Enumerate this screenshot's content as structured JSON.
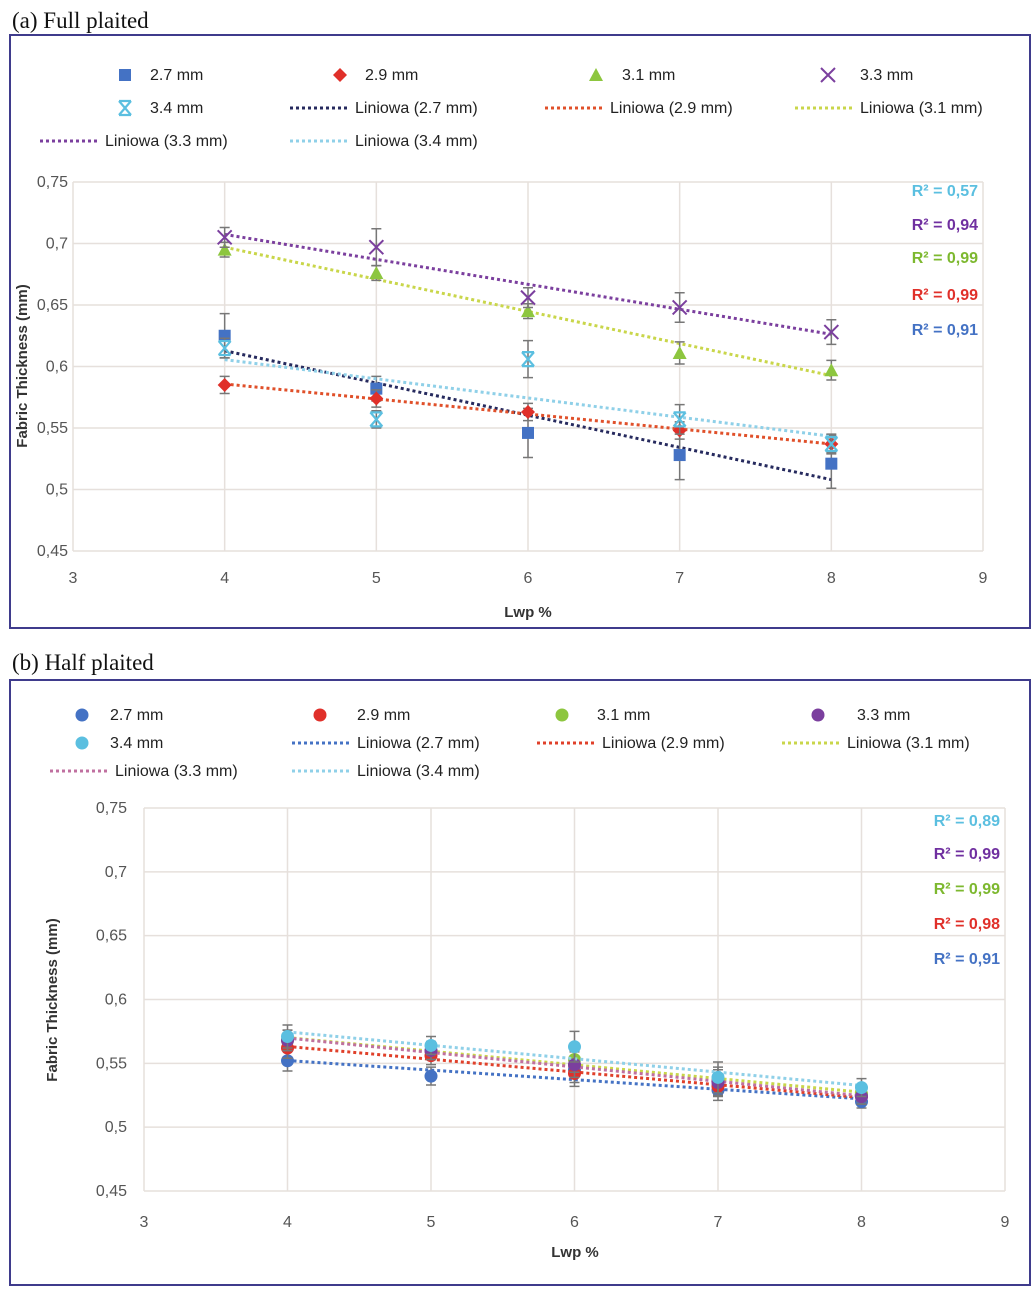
{
  "chart_data": [
    {
      "type": "scatter",
      "title": "(a) Full plaited",
      "xlabel": "Lwp %",
      "ylabel": "Fabric Thickness (mm)",
      "xlim": [
        3,
        9
      ],
      "ylim": [
        0.45,
        0.75
      ],
      "x_ticks": [
        "3",
        "4",
        "5",
        "6",
        "7",
        "8",
        "9"
      ],
      "y_ticks": [
        "0,45",
        "0,5",
        "0,55",
        "0,6",
        "0,65",
        "0,7",
        "0,75"
      ],
      "grid": true,
      "legend_placement": "top",
      "x": [
        4,
        5,
        6,
        7,
        8
      ],
      "series": [
        {
          "name": "2.7 mm",
          "marker": "square",
          "color": "#4472C4",
          "trend_color": "#262a5e",
          "values": [
            0.625,
            0.582,
            0.546,
            0.528,
            0.521
          ],
          "errors": [
            0.018,
            0.01,
            0.02,
            0.02,
            0.02
          ],
          "trend_name": "Liniowa (2.7 mm)",
          "r2": "R² = 0,91",
          "r2_color": "#4472C4"
        },
        {
          "name": "2.9 mm",
          "marker": "diamond",
          "color": "#E0302A",
          "trend_color": "#E0502A",
          "values": [
            0.585,
            0.574,
            0.563,
            0.548,
            0.537
          ],
          "errors": [
            0.007,
            0.007,
            0.007,
            0.007,
            0.007
          ],
          "trend_name": "Liniowa (2.9 mm)",
          "r2": "R² = 0,99",
          "r2_color": "#E0302A"
        },
        {
          "name": "3.1 mm",
          "marker": "triangle",
          "color": "#8DC63F",
          "trend_color": "#C9D64A",
          "values": [
            0.695,
            0.676,
            0.645,
            0.611,
            0.597
          ],
          "errors": [
            0.006,
            0.006,
            0.006,
            0.009,
            0.008
          ],
          "trend_name": "Liniowa (3.1 mm)",
          "r2": "R² = 0,99",
          "r2_color": "#7DB82F"
        },
        {
          "name": "3.3 mm",
          "marker": "x",
          "color": "#7B3F9E",
          "trend_color": "#7B3F9E",
          "values": [
            0.705,
            0.697,
            0.656,
            0.648,
            0.628
          ],
          "errors": [
            0.008,
            0.015,
            0.008,
            0.012,
            0.01
          ],
          "trend_name": "Liniowa (3.3 mm)",
          "r2": "R² = 0,94",
          "r2_color": "#7030A0"
        },
        {
          "name": "3.4 mm",
          "marker": "asterisk",
          "color": "#5BBFE0",
          "trend_color": "#8FD0E8",
          "values": [
            0.615,
            0.557,
            0.606,
            0.557,
            0.537
          ],
          "errors": [
            0.008,
            0.007,
            0.015,
            0.012,
            0.008
          ],
          "trend_name": "Liniowa (3.4 mm)",
          "r2": "R² = 0,57",
          "r2_color": "#5BBFE0"
        }
      ]
    },
    {
      "type": "scatter",
      "title": "(b) Half plaited",
      "xlabel": "Lwp %",
      "ylabel": "Fabric Thickness (mm)",
      "xlim": [
        3,
        9
      ],
      "ylim": [
        0.45,
        0.75
      ],
      "x_ticks": [
        "3",
        "4",
        "5",
        "6",
        "7",
        "8",
        "9"
      ],
      "y_ticks": [
        "0,45",
        "0,5",
        "0,55",
        "0,6",
        "0,65",
        "0,7",
        "0,75"
      ],
      "grid": true,
      "legend_placement": "top",
      "x": [
        4,
        5,
        6,
        7,
        8
      ],
      "series": [
        {
          "name": "2.7 mm",
          "marker": "circle",
          "color": "#4472C4",
          "trend_color": "#4472C4",
          "values": [
            0.552,
            0.54,
            0.545,
            0.529,
            0.52
          ],
          "errors": [
            0.008,
            0.007,
            0.01,
            0.008,
            0.005
          ],
          "trend_name": "Liniowa (2.7 mm)",
          "r2": "R² = 0,91",
          "r2_color": "#4472C4"
        },
        {
          "name": "2.9 mm",
          "marker": "circle",
          "color": "#E0302A",
          "trend_color": "#E0402A",
          "values": [
            0.562,
            0.556,
            0.542,
            0.532,
            0.524
          ],
          "errors": [
            0.008,
            0.007,
            0.01,
            0.008,
            0.006
          ],
          "trend_name": "Liniowa (2.9 mm)",
          "r2": "R² = 0,98",
          "r2_color": "#E0302A"
        },
        {
          "name": "3.1 mm",
          "marker": "circle",
          "color": "#8DC63F",
          "trend_color": "#C9D64A",
          "values": [
            0.568,
            0.56,
            0.553,
            0.537,
            0.526
          ],
          "errors": [
            0.008,
            0.007,
            0.01,
            0.01,
            0.006
          ],
          "trend_name": "Liniowa (3.1 mm)",
          "r2": "R² = 0,99",
          "r2_color": "#7DB82F"
        },
        {
          "name": "3.3 mm",
          "marker": "circle",
          "color": "#7B3F9E",
          "trend_color": "#C070A0",
          "values": [
            0.568,
            0.56,
            0.549,
            0.535,
            0.524
          ],
          "errors": [
            0.008,
            0.007,
            0.01,
            0.01,
            0.006
          ],
          "trend_name": "Liniowa (3.3 mm)",
          "r2": "R² = 0,99",
          "r2_color": "#7030A0"
        },
        {
          "name": "3.4 mm",
          "marker": "circle",
          "color": "#5BBFE0",
          "trend_color": "#8FD0E8",
          "values": [
            0.571,
            0.564,
            0.563,
            0.539,
            0.531
          ],
          "errors": [
            0.009,
            0.007,
            0.012,
            0.012,
            0.007
          ],
          "trend_name": "Liniowa (3.4 mm)",
          "r2": "R² = 0,89",
          "r2_color": "#5BBFE0"
        }
      ]
    }
  ],
  "colors": {
    "frame": "#3F3B8C",
    "grid": "#E6E0DC",
    "error_bar": "#777777"
  }
}
